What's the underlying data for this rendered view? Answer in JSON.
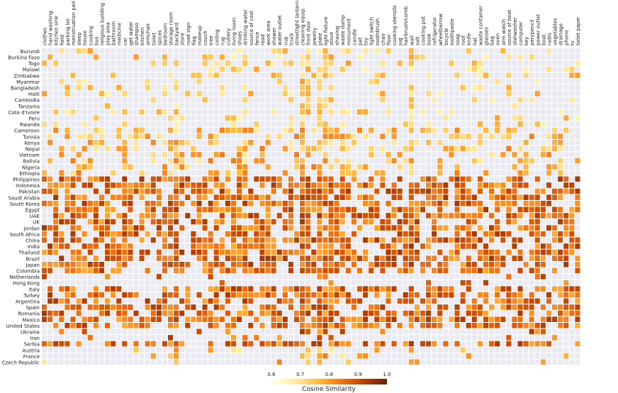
{
  "chart_data": {
    "type": "heatmap",
    "rows": [
      "Burundi",
      "Burkina Faso",
      "Togo",
      "Malawi",
      "Zimbabwe",
      "Myanmar",
      "Bangladesh",
      "Haiti",
      "Cambodia",
      "Tanzania",
      "Cote d'Ivoire",
      "Peru",
      "Rwanda",
      "Cameroon",
      "Tunisia",
      "Kenya",
      "Nepal",
      "Vietnam",
      "Bolivia",
      "Nigeria",
      "Ethiopia",
      "Philippines",
      "Indonesia",
      "Pakistan",
      "Saudi Arabia",
      "South Korea",
      "Egypt",
      "UAE",
      "UK",
      "Jordan",
      "South Africa",
      "China",
      "India",
      "Thailand",
      "Brazil",
      "Japan",
      "Colombia",
      "Netherlands",
      "Hong Kong",
      "Italy",
      "Turkey",
      "Argentina",
      "Spain",
      "Romania",
      "Mexico",
      "United States",
      "Ukraine",
      "Iran",
      "Serbia",
      "Austria",
      "France",
      "Czech Republic"
    ],
    "columns": [
      "clothes",
      "hand washing",
      "kitchen sink",
      "field",
      "parking lot",
      "menstruation pad",
      "sleep",
      "house",
      "cooking",
      "bus",
      "religious building",
      "play area",
      "bathroom",
      "medicine",
      "car",
      "get water",
      "shampoo",
      "kitchen",
      "armchair",
      "toilet",
      "spices",
      "bedroom",
      "storage room",
      "backyard",
      "store",
      "road sign",
      "flag",
      "makeup",
      "couch",
      "tree",
      "ceiling",
      "rug",
      "cutlery",
      "living room",
      "shoes",
      "drinking water",
      "source of cool",
      "fence",
      "read",
      "work area",
      "shower",
      "water outlet",
      "cup",
      "truck",
      "streetlight lantern",
      "cleaning equip.",
      "front door",
      "jewelry",
      "plate",
      "light fixture",
      "stove",
      "shaving",
      "waste dump",
      "monument",
      "candle",
      "pet",
      "toy",
      "light switch",
      "toothbrush",
      "chair",
      "floor",
      "cooking utensils",
      "jug",
      "hairbrush/comb",
      "wall",
      "salt",
      "cooking pot",
      "book",
      "refrigerator",
      "wheelbarrow",
      "bicycle",
      "toothpaste",
      "soap",
      "roof",
      "knife",
      "hat",
      "waste container",
      "glasses",
      "bag",
      "oven",
      "arm watch",
      "source of heat",
      "dishwasher",
      "computer",
      "key",
      "pen/pencil",
      "power outlet",
      "boat",
      "radio",
      "vegetables",
      "drainage",
      "phone",
      "tv",
      "toilet paper"
    ],
    "colorbar": {
      "label": "Cosine Similarity",
      "min": 0.6,
      "max": 1.0,
      "ticks": [
        "0.6",
        "0.7",
        "0.8",
        "0.9",
        "1.0"
      ]
    },
    "notes": "Cell values estimated in cosine-similarity units; empty cells are blank (no value)."
  }
}
